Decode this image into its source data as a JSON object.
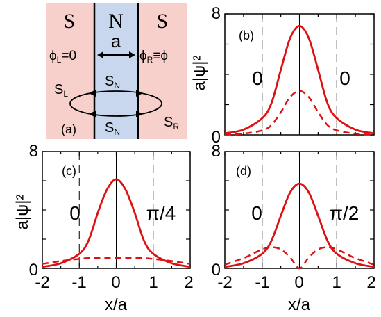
{
  "figure": {
    "schematic": {
      "panel_label": "(a)",
      "left_region": "S",
      "middle_region": "N",
      "right_region": "S",
      "width_label": "a",
      "phase_left": {
        "main": "ϕ",
        "sub": "L",
        "rest": "=0"
      },
      "phase_right": {
        "main": "ϕ",
        "sub": "R",
        "rest": "≡ϕ"
      },
      "loop_labels": {
        "S_L": {
          "main": "S",
          "sub": "L"
        },
        "S_N_top": {
          "main": "S",
          "sub": "N"
        },
        "S_N_bottom": {
          "main": "S",
          "sub": "N"
        },
        "S_R": {
          "main": "S",
          "sub": "R"
        }
      },
      "colors": {
        "superconductor": "#f7d0cc",
        "normal": "#c8d6ee"
      }
    },
    "plot_colors": {
      "curve": "#dd1111"
    },
    "panels_text": {
      "b": {
        "label": "(b)",
        "left_phase": "0",
        "right_phase": "0",
        "ylabel": "a|ψ|²",
        "y_top": "8",
        "y_zero": "0"
      },
      "c": {
        "label": "(c)",
        "left_phase": "0",
        "right_phase": "π/4",
        "ylabel": "a|ψ|²",
        "y_top": "8",
        "y_zero": "0"
      },
      "d": {
        "label": "(d)",
        "left_phase": "0",
        "right_phase": "π/2",
        "y_top": "8",
        "y_zero": "0"
      }
    },
    "x_ticks": [
      "-2",
      "-1",
      "0",
      "1",
      "2"
    ],
    "xlabel": "x/a"
  },
  "chart_data": [
    {
      "type": "line",
      "panel": "b",
      "xlim": [
        -2,
        2
      ],
      "ylim": [
        0,
        8
      ],
      "interface_positions": [
        -0.5,
        0.5
      ],
      "series": [
        {
          "style": "solid",
          "x": [
            -2,
            -1.5,
            -1.0,
            -0.75,
            -0.5,
            -0.25,
            0,
            0.25,
            0.5,
            0.75,
            1.0,
            1.5,
            2
          ],
          "y": [
            0.1,
            0.35,
            1.1,
            2.1,
            4.3,
            6.4,
            7.2,
            6.4,
            4.3,
            2.1,
            1.1,
            0.35,
            0.1
          ]
        },
        {
          "style": "dashed",
          "x": [
            -2,
            -1.5,
            -1.0,
            -0.75,
            -0.5,
            -0.25,
            0,
            0.25,
            0.5,
            0.75,
            1.0,
            1.5,
            2
          ],
          "y": [
            0.02,
            0.08,
            0.3,
            0.65,
            1.5,
            2.5,
            2.9,
            2.5,
            1.5,
            0.65,
            0.3,
            0.08,
            0.02
          ]
        }
      ]
    },
    {
      "type": "line",
      "panel": "c",
      "xlim": [
        -2,
        2
      ],
      "ylim": [
        0,
        8
      ],
      "interface_positions": [
        -0.5,
        0.5
      ],
      "series": [
        {
          "style": "solid",
          "x": [
            -2,
            -1.5,
            -1.0,
            -0.75,
            -0.5,
            -0.25,
            0,
            0.25,
            0.5,
            0.75,
            1.0,
            1.5,
            2
          ],
          "y": [
            0.1,
            0.35,
            1.0,
            1.9,
            3.8,
            5.4,
            6.1,
            5.4,
            3.8,
            1.9,
            1.0,
            0.35,
            0.1
          ]
        },
        {
          "style": "dashed",
          "x": [
            -2,
            -1.5,
            -1.0,
            -0.75,
            -0.5,
            -0.25,
            0,
            0.25,
            0.5,
            0.75,
            1.0,
            1.5,
            2
          ],
          "y": [
            0.3,
            0.5,
            0.65,
            0.7,
            0.7,
            0.7,
            0.7,
            0.7,
            0.7,
            0.7,
            0.65,
            0.5,
            0.3
          ]
        }
      ]
    },
    {
      "type": "line",
      "panel": "d",
      "xlim": [
        -2,
        2
      ],
      "ylim": [
        0,
        8
      ],
      "interface_positions": [
        -0.5,
        0.5
      ],
      "series": [
        {
          "style": "solid",
          "x": [
            -2,
            -1.5,
            -1.0,
            -0.75,
            -0.5,
            -0.25,
            0,
            0.25,
            0.5,
            0.75,
            1.0,
            1.5,
            2
          ],
          "y": [
            0.1,
            0.35,
            1.0,
            1.9,
            3.6,
            5.2,
            5.8,
            5.2,
            3.6,
            1.9,
            1.0,
            0.35,
            0.1
          ]
        },
        {
          "style": "dashed",
          "x": [
            -2,
            -1.5,
            -1.25,
            -1.0,
            -0.75,
            -0.5,
            -0.25,
            0,
            0.25,
            0.5,
            0.75,
            1.0,
            1.25,
            1.5,
            2
          ],
          "y": [
            0.25,
            0.7,
            1.0,
            1.3,
            1.45,
            1.3,
            0.75,
            0,
            0.75,
            1.3,
            1.45,
            1.3,
            1.0,
            0.7,
            0.25
          ]
        }
      ]
    }
  ]
}
